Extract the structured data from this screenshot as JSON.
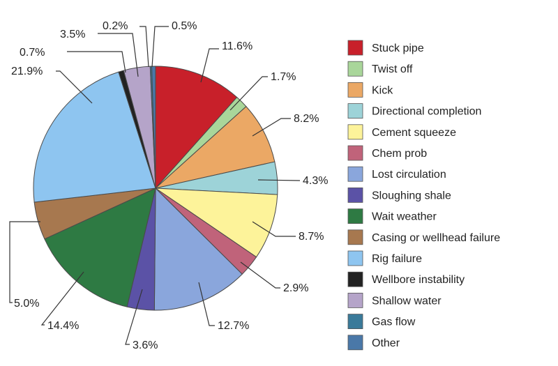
{
  "chart_data": {
    "type": "pie",
    "legend_position": "right",
    "slices": [
      {
        "label": "Stuck pipe",
        "value": 11.6,
        "display": "11.6%",
        "color": "#c8202a"
      },
      {
        "label": "Twist off",
        "value": 1.7,
        "display": "1.7%",
        "color": "#a9d69a"
      },
      {
        "label": "Kick",
        "value": 8.2,
        "display": "8.2%",
        "color": "#eba865"
      },
      {
        "label": "Directional completion",
        "value": 4.3,
        "display": "4.3%",
        "color": "#9dd3d8"
      },
      {
        "label": "Cement squeeze",
        "value": 8.7,
        "display": "8.7%",
        "color": "#fdf39a"
      },
      {
        "label": "Chem prob",
        "value": 2.9,
        "display": "2.9%",
        "color": "#c0637a"
      },
      {
        "label": "Lost circulation",
        "value": 12.7,
        "display": "12.7%",
        "color": "#8aa6dc"
      },
      {
        "label": "Sloughing shale",
        "value": 3.6,
        "display": "3.6%",
        "color": "#5b52a6"
      },
      {
        "label": "Wait weather",
        "value": 14.4,
        "display": "14.4%",
        "color": "#2e7a43"
      },
      {
        "label": "Casing or wellhead failure",
        "value": 5.0,
        "display": "5.0%",
        "color": "#a7784f"
      },
      {
        "label": "Rig failure",
        "value": 21.9,
        "display": "21.9%",
        "color": "#8ec5f0"
      },
      {
        "label": "Wellbore instability",
        "value": 0.7,
        "display": "0.7%",
        "color": "#222222"
      },
      {
        "label": "Shallow water",
        "value": 3.5,
        "display": "3.5%",
        "color": "#b5a4c9"
      },
      {
        "label": "Gas flow",
        "value": 0.2,
        "display": "0.2%",
        "color": "#3a7a9a"
      },
      {
        "label": "Other",
        "value": 0.5,
        "display": "0.5%",
        "color": "#4a78a8"
      }
    ]
  }
}
